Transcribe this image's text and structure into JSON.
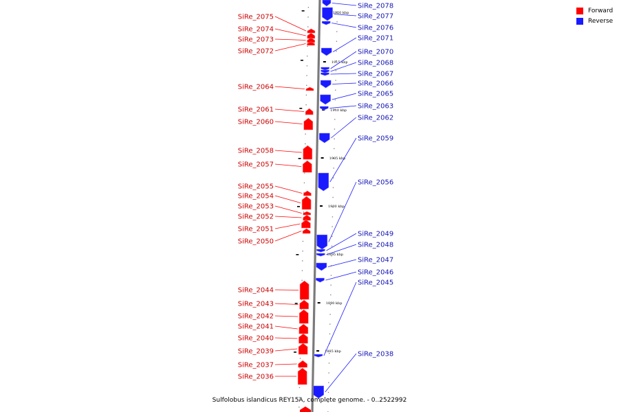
{
  "colors": {
    "forward": "#ff0000",
    "reverse": "#1a1aff",
    "forward_text": "#cc0000",
    "reverse_text": "#1414b4"
  },
  "legend": [
    {
      "label": "Forward",
      "color": "#ff0000"
    },
    {
      "label": "Reverse",
      "color": "#1a1aff"
    }
  ],
  "caption": "Sulfolobus islandicus REY15A, complete genome. - 0..2522992",
  "ticks": [
    "1920 kbp",
    "1915 kbp",
    "1910 kbp",
    "1905 kbp",
    "1900 kbp",
    "1895 kbp",
    "1890 kbp",
    "1885 kbp"
  ],
  "forward_genes": [
    "SiRe_2075",
    "SiRe_2074",
    "SiRe_2073",
    "SiRe_2072",
    "SiRe_2064",
    "SiRe_2061",
    "SiRe_2060",
    "SiRe_2058",
    "SiRe_2057",
    "SiRe_2055",
    "SiRe_2054",
    "SiRe_2053",
    "SiRe_2052",
    "SiRe_2051",
    "SiRe_2050",
    "SiRe_2044",
    "SiRe_2043",
    "SiRe_2042",
    "SiRe_2041",
    "SiRe_2040",
    "SiRe_2039",
    "SiRe_2037",
    "SiRe_2036"
  ],
  "reverse_genes": [
    "SiRe_2078",
    "SiRe_2077",
    "SiRe_2076",
    "SiRe_2071",
    "SiRe_2070",
    "SiRe_2068",
    "SiRe_2067",
    "SiRe_2066",
    "SiRe_2065",
    "SiRe_2063",
    "SiRe_2062",
    "SiRe_2059",
    "SiRe_2056",
    "SiRe_2049",
    "SiRe_2048",
    "SiRe_2047",
    "SiRe_2046",
    "SiRe_2045",
    "SiRe_2038"
  ]
}
